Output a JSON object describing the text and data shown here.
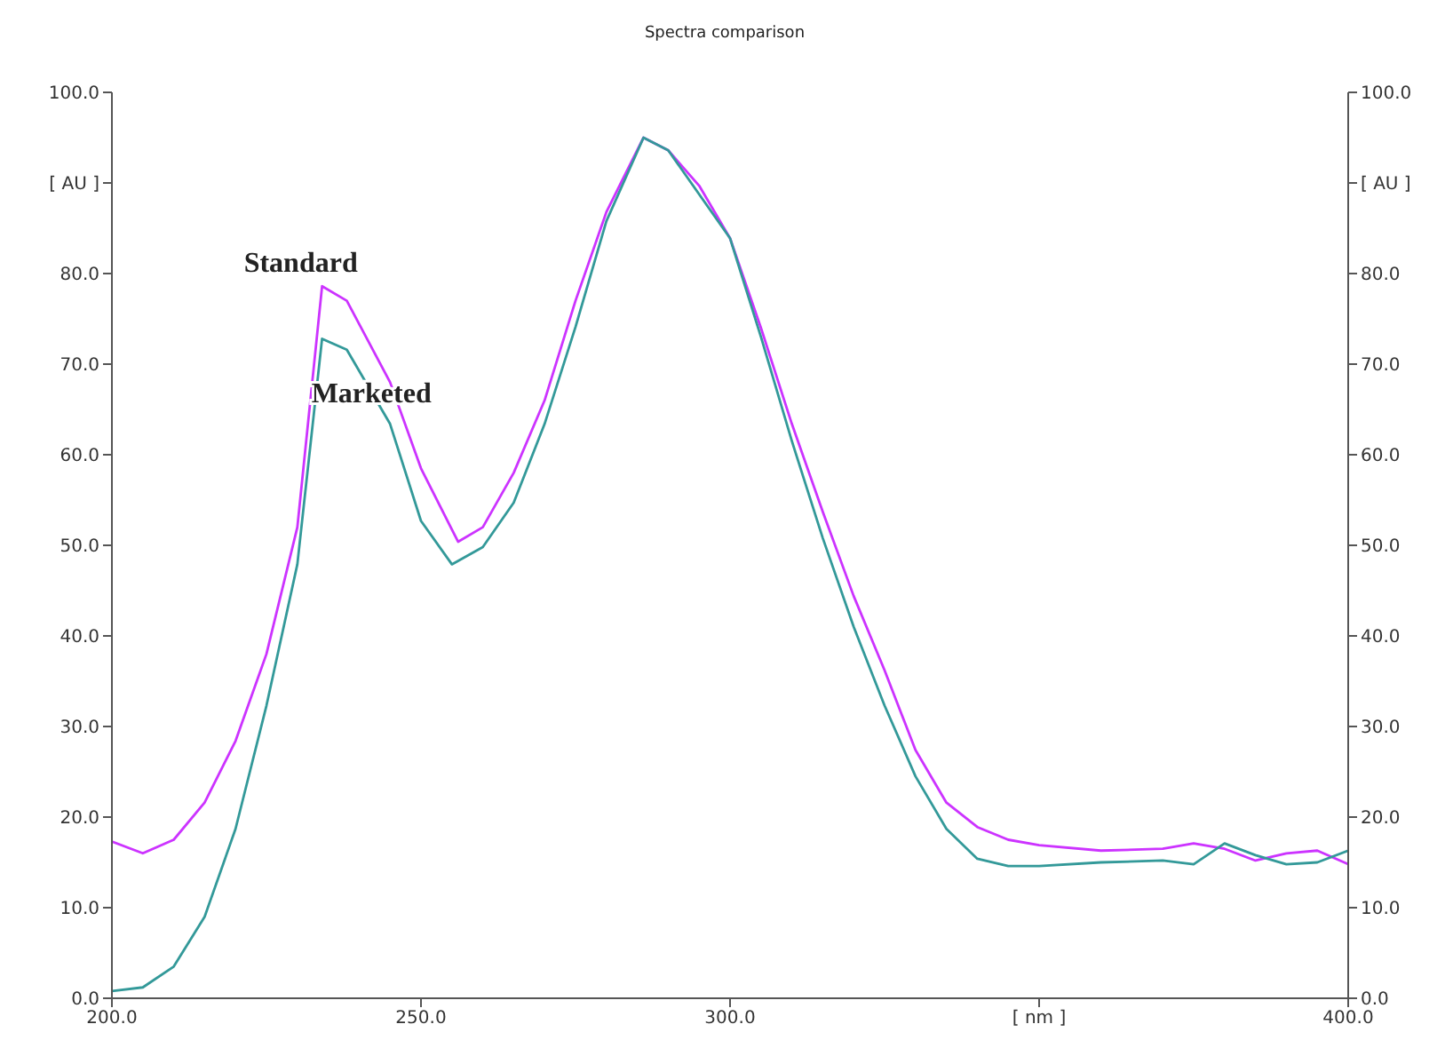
{
  "chart_data": {
    "type": "line",
    "title": "Spectra comparison",
    "xlim": [
      200,
      400
    ],
    "xticks": [
      {
        "value": 200,
        "label": "200.0"
      },
      {
        "value": 250,
        "label": "250.0"
      },
      {
        "value": 300,
        "label": "300.0"
      },
      {
        "value": 350,
        "label": "[ nm ]"
      },
      {
        "value": 400,
        "label": "400.0"
      }
    ],
    "ylim": [
      0,
      100
    ],
    "yticks": [
      {
        "value": 0,
        "label": "0.0"
      },
      {
        "value": 10,
        "label": "10.0"
      },
      {
        "value": 20,
        "label": "20.0"
      },
      {
        "value": 30,
        "label": "30.0"
      },
      {
        "value": 40,
        "label": "40.0"
      },
      {
        "value": 50,
        "label": "50.0"
      },
      {
        "value": 60,
        "label": "60.0"
      },
      {
        "value": 70,
        "label": "70.0"
      },
      {
        "value": 80,
        "label": "80.0"
      },
      {
        "value": 90,
        "label": "[ AU ]"
      },
      {
        "value": 100,
        "label": "100.0"
      }
    ],
    "y2lim": [
      0,
      100
    ],
    "y2ticks": [
      {
        "value": 0,
        "label": "0.0"
      },
      {
        "value": 10,
        "label": "10.0"
      },
      {
        "value": 20,
        "label": "20.0"
      },
      {
        "value": 30,
        "label": "30.0"
      },
      {
        "value": 40,
        "label": "40.0"
      },
      {
        "value": 50,
        "label": "50.0"
      },
      {
        "value": 60,
        "label": "60.0"
      },
      {
        "value": 70,
        "label": "70.0"
      },
      {
        "value": 80,
        "label": "80.0"
      },
      {
        "value": 90,
        "label": "[ AU ]"
      },
      {
        "value": 100,
        "label": "100.0"
      }
    ],
    "marker": "none",
    "line_style": "solid",
    "series": [
      {
        "name": "Standard",
        "color": "#cc33ff",
        "x": [
          200,
          205,
          210,
          215,
          220,
          225,
          230,
          234,
          238,
          245,
          250,
          256,
          260,
          265,
          270,
          275,
          280,
          286,
          290,
          295,
          300,
          305,
          310,
          315,
          320,
          325,
          330,
          335,
          340,
          345,
          350,
          360,
          370,
          375,
          380,
          385,
          390,
          395,
          400
        ],
        "values": [
          17.3,
          16.0,
          17.5,
          21.6,
          28.4,
          38,
          52,
          78.6,
          77,
          68,
          58.5,
          50.4,
          52,
          58,
          66,
          77,
          86.8,
          95,
          93.6,
          89.7,
          83.9,
          74,
          63.4,
          53.7,
          44.4,
          36.2,
          27.4,
          21.6,
          18.9,
          17.5,
          16.9,
          16.3,
          16.5,
          17.1,
          16.5,
          15.2,
          16,
          16.3,
          14.8
        ]
      },
      {
        "name": "Marketed",
        "color": "#339999",
        "x": [
          200,
          205,
          210,
          215,
          220,
          225,
          230,
          234,
          238,
          245,
          250,
          255,
          260,
          265,
          270,
          275,
          280,
          286,
          290,
          300,
          305,
          310,
          315,
          320,
          325,
          330,
          335,
          340,
          345,
          350,
          360,
          370,
          375,
          380,
          385,
          390,
          395,
          400
        ],
        "values": [
          0.8,
          1.2,
          3.5,
          9,
          18.7,
          32.3,
          47.9,
          72.8,
          71.6,
          63.4,
          52.7,
          47.9,
          49.8,
          54.7,
          63.4,
          74.1,
          85.8,
          95,
          93.6,
          83.9,
          73,
          61.5,
          50.8,
          41,
          32.3,
          24.5,
          18.7,
          15.4,
          14.6,
          14.6,
          15,
          15.2,
          14.8,
          17.1,
          15.8,
          14.8,
          15,
          16.3
        ]
      }
    ]
  }
}
